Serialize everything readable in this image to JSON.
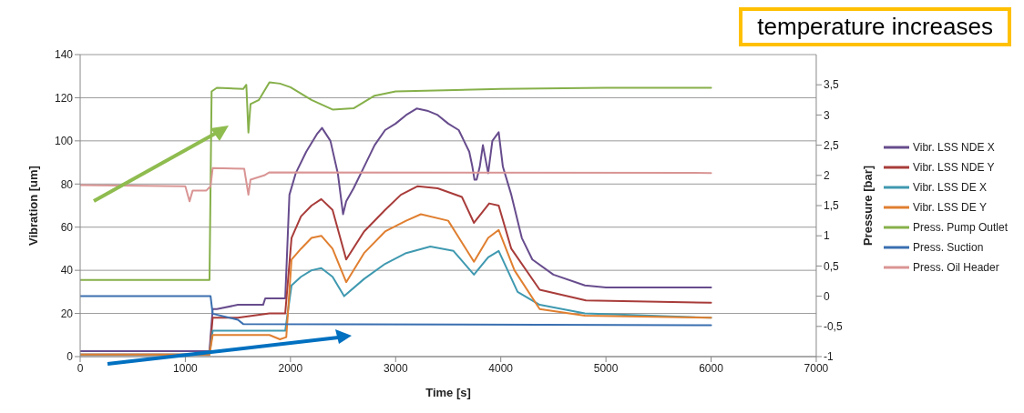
{
  "chart_data": {
    "type": "line",
    "xlabel": "Time [s]",
    "ylabel": "Vibration [um]",
    "y2label": "Pressure [bar]",
    "annotations": [
      "temperature increases"
    ],
    "xlim": [
      0,
      7000
    ],
    "xticks": [
      0,
      1000,
      2000,
      3000,
      4000,
      5000,
      6000,
      7000
    ],
    "ylim": [
      0,
      140
    ],
    "yticks": [
      0,
      20,
      40,
      60,
      80,
      100,
      120,
      140
    ],
    "y2lim": [
      -1,
      4
    ],
    "y2ticks": [
      -1,
      {
        "value": -0.5,
        "label": "-0,5"
      },
      0,
      {
        "value": 0.5,
        "label": "0,5"
      },
      1,
      {
        "value": 1.5,
        "label": "1,5"
      },
      2,
      {
        "value": 2.5,
        "label": "2,5"
      },
      3,
      {
        "value": 3.5,
        "label": "3,5"
      }
    ],
    "grid": "y",
    "legend": "right",
    "marker": "none",
    "line_style": "solid",
    "series": [
      {
        "name": "Vibr. LSS NDE X",
        "color": "#674c8d",
        "x": [
          0,
          1230,
          1260,
          1300,
          1500,
          1740,
          1760,
          1950,
          1990,
          2050,
          2150,
          2250,
          2300,
          2380,
          2450,
          2500,
          2530,
          2600,
          2700,
          2800,
          2900,
          3000,
          3100,
          3200,
          3300,
          3400,
          3500,
          3600,
          3700,
          3730,
          3750,
          3770,
          3800,
          3830,
          3880,
          3920,
          3980,
          4020,
          4100,
          4200,
          4300,
          4500,
          4800,
          5000,
          6000
        ],
        "values": [
          2.5,
          2.5,
          22,
          22,
          24,
          24,
          27,
          27,
          75,
          85,
          95,
          103,
          106,
          100,
          85,
          66,
          72,
          78,
          88,
          98,
          105,
          108,
          112,
          115,
          114,
          112,
          108,
          105,
          95,
          88,
          82,
          82,
          88,
          98,
          85,
          100,
          104,
          88,
          75,
          55,
          45,
          38,
          33,
          32,
          32
        ]
      },
      {
        "name": "Vibr. LSS NDE Y",
        "color": "#a83c3a",
        "x": [
          0,
          1230,
          1260,
          1500,
          1800,
          1950,
          2010,
          2100,
          2200,
          2293,
          2400,
          2530,
          2700,
          2900,
          3050,
          3210,
          3400,
          3630,
          3745,
          3890,
          3980,
          4100,
          4370,
          4810,
          6000
        ],
        "values": [
          1,
          1,
          18,
          18,
          20,
          20,
          55,
          65,
          70,
          73,
          68,
          45,
          58,
          68,
          75,
          79,
          78,
          74,
          62,
          71,
          70,
          50,
          31,
          26,
          25
        ]
      },
      {
        "name": "Vibr. LSS DE X",
        "color": "#3f99b0",
        "x": [
          0,
          1230,
          1260,
          1800,
          1950,
          2010,
          2100,
          2200,
          2293,
          2400,
          2510,
          2700,
          2900,
          3100,
          3330,
          3550,
          3745,
          3880,
          3980,
          4160,
          4370,
          4800,
          6000
        ],
        "values": [
          1,
          1,
          12,
          12,
          12,
          33,
          37,
          40,
          41,
          37,
          28,
          36,
          43,
          48,
          51,
          49,
          38,
          46,
          49,
          30,
          24,
          20,
          18
        ]
      },
      {
        "name": "Vibr. LSS DE Y",
        "color": "#e07f30",
        "x": [
          0,
          1230,
          1260,
          1800,
          1900,
          1960,
          2010,
          2100,
          2200,
          2293,
          2400,
          2530,
          2700,
          2900,
          3100,
          3240,
          3500,
          3745,
          3880,
          3980,
          4130,
          4370,
          4800,
          6000
        ],
        "values": [
          1,
          1,
          10,
          10,
          8,
          9,
          45,
          50,
          55,
          56,
          50,
          34.5,
          48,
          58,
          63,
          66,
          63,
          44,
          55,
          58.7,
          40,
          22,
          19,
          18
        ]
      },
      {
        "name": "Press. Pump Outlet",
        "color": "#86b04a",
        "axis": "y2",
        "x": [
          0,
          1230,
          1250,
          1300,
          1550,
          1580,
          1600,
          1620,
          1700,
          1800,
          1900,
          2000,
          2200,
          2400,
          2600,
          2800,
          3000,
          4000,
          5000,
          6000
        ],
        "values": [
          0.27,
          0.27,
          3.39,
          3.45,
          3.43,
          3.5,
          2.71,
          3.18,
          3.25,
          3.54,
          3.52,
          3.46,
          3.25,
          3.09,
          3.11,
          3.32,
          3.39,
          3.43,
          3.45,
          3.45
        ]
      },
      {
        "name": "Press. Suction",
        "color": "#3a6fb0",
        "axis": "y2",
        "x": [
          0,
          1240,
          1260,
          1500,
          1550,
          6000
        ],
        "values": [
          0,
          0,
          -0.29,
          -0.39,
          -0.46,
          -0.48
        ]
      },
      {
        "name": "Press. Oil Header",
        "color": "#d99594",
        "axis": "y2",
        "x": [
          0,
          1000,
          1040,
          1070,
          1200,
          1240,
          1260,
          1560,
          1600,
          1620,
          1750,
          1800,
          6000
        ],
        "values": [
          1.84,
          1.82,
          1.57,
          1.75,
          1.75,
          1.82,
          2.12,
          2.11,
          1.68,
          1.93,
          2.0,
          2.05,
          2.04
        ]
      }
    ]
  }
}
